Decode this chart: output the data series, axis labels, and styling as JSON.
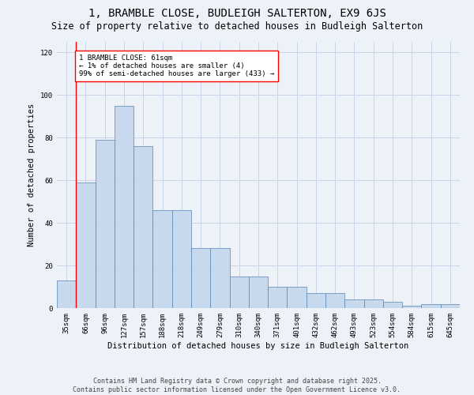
{
  "title": "1, BRAMBLE CLOSE, BUDLEIGH SALTERTON, EX9 6JS",
  "subtitle": "Size of property relative to detached houses in Budleigh Salterton",
  "xlabel": "Distribution of detached houses by size in Budleigh Salterton",
  "ylabel": "Number of detached properties",
  "categories": [
    "35sqm",
    "66sqm",
    "96sqm",
    "127sqm",
    "157sqm",
    "188sqm",
    "218sqm",
    "249sqm",
    "279sqm",
    "310sqm",
    "340sqm",
    "371sqm",
    "401sqm",
    "432sqm",
    "462sqm",
    "493sqm",
    "523sqm",
    "554sqm",
    "584sqm",
    "615sqm",
    "645sqm"
  ],
  "values": [
    13,
    59,
    79,
    95,
    76,
    46,
    46,
    28,
    28,
    15,
    15,
    10,
    10,
    7,
    7,
    4,
    4,
    3,
    1,
    2,
    2
  ],
  "bar_color": "#c8d9ee",
  "bar_edge_color": "#5585b5",
  "grid_color": "#c8d4e8",
  "background_color": "#edf2f9",
  "vline_color": "red",
  "annotation_text": "1 BRAMBLE CLOSE: 61sqm\n← 1% of detached houses are smaller (4)\n99% of semi-detached houses are larger (433) →",
  "annotation_box_color": "white",
  "annotation_box_edge": "red",
  "ylim": [
    0,
    125
  ],
  "yticks": [
    0,
    20,
    40,
    60,
    80,
    100,
    120
  ],
  "footer": "Contains HM Land Registry data © Crown copyright and database right 2025.\nContains public sector information licensed under the Open Government Licence v3.0.",
  "title_fontsize": 10,
  "subtitle_fontsize": 8.5,
  "axis_label_fontsize": 7.5,
  "tick_fontsize": 6.5,
  "annotation_fontsize": 6.5,
  "footer_fontsize": 6
}
